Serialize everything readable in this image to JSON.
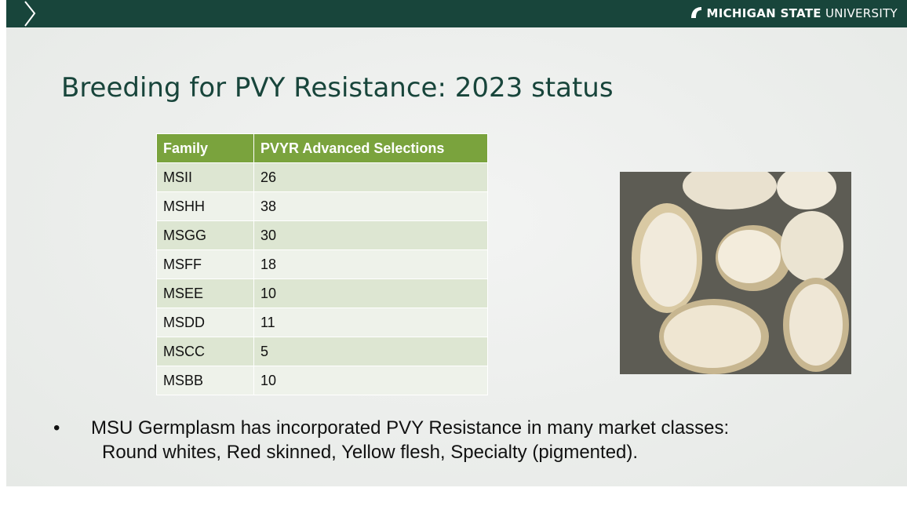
{
  "header": {
    "brand_bold": "MICHIGAN STATE",
    "brand_light": "UNIVERSITY"
  },
  "title": "Breeding for PVY Resistance: 2023 status",
  "table": {
    "columns": [
      "Family",
      "PVYR Advanced Selections"
    ],
    "rows": [
      [
        "MSII",
        "26"
      ],
      [
        "MSHH",
        "38"
      ],
      [
        "MSGG",
        "30"
      ],
      [
        "MSFF",
        "18"
      ],
      [
        "MSEE",
        "10"
      ],
      [
        "MSDD",
        "11"
      ],
      [
        "MSCC",
        "5"
      ],
      [
        "MSBB",
        "10"
      ]
    ]
  },
  "bullet": {
    "lines": [
      "MSU Germplasm has incorporated PVY Resistance in many market classes:",
      "Round whites, Red skinned, Yellow flesh, Specialty (pigmented)."
    ]
  }
}
